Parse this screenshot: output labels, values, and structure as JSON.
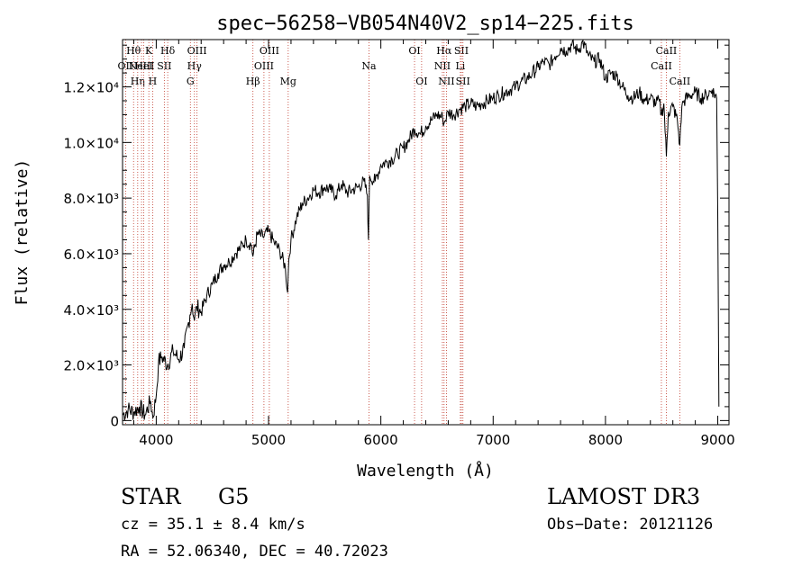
{
  "chart_data": {
    "type": "line",
    "title": "spec−56258−VB054N40V2_sp14−225.fits",
    "xlabel": "Wavelength (Å)",
    "ylabel": "Flux (relative)",
    "xlim": [
      3700,
      9100
    ],
    "ylim": [
      -150,
      13700
    ],
    "x_ticks": [
      4000,
      5000,
      6000,
      7000,
      8000,
      9000
    ],
    "x_tick_labels": [
      "4000",
      "5000",
      "6000",
      "7000",
      "8000",
      "9000"
    ],
    "y_ticks": [
      0,
      2000,
      4000,
      6000,
      8000,
      10000,
      12000
    ],
    "y_tick_labels": [
      "0",
      "2.0×10³",
      "4.0×10³",
      "6.0×10³",
      "8.0×10³",
      "1.0×10⁴",
      "1.2×10⁴"
    ],
    "series": [
      {
        "name": "spectrum",
        "x": [
          3700,
          3750,
          3800,
          3850,
          3900,
          3950,
          3970,
          4000,
          4020,
          4050,
          4100,
          4150,
          4200,
          4250,
          4300,
          4320,
          4340,
          4360,
          4400,
          4450,
          4500,
          4550,
          4600,
          4650,
          4700,
          4750,
          4800,
          4850,
          4860,
          4900,
          4950,
          5000,
          5050,
          5100,
          5150,
          5170,
          5180,
          5200,
          5250,
          5300,
          5350,
          5400,
          5450,
          5500,
          5550,
          5600,
          5650,
          5700,
          5750,
          5800,
          5850,
          5880,
          5890,
          5900,
          5950,
          6000,
          6050,
          6100,
          6150,
          6200,
          6250,
          6300,
          6350,
          6400,
          6450,
          6500,
          6550,
          6563,
          6600,
          6650,
          6700,
          6750,
          6800,
          6850,
          6900,
          6950,
          7000,
          7050,
          7100,
          7150,
          7200,
          7250,
          7300,
          7350,
          7400,
          7450,
          7500,
          7550,
          7600,
          7650,
          7700,
          7750,
          7800,
          7850,
          7900,
          7950,
          8000,
          8050,
          8100,
          8150,
          8200,
          8250,
          8300,
          8350,
          8400,
          8450,
          8480,
          8498,
          8520,
          8542,
          8560,
          8600,
          8640,
          8662,
          8680,
          8700,
          8750,
          8800,
          8850,
          8900,
          8950,
          8990,
          9000,
          9010
        ],
        "y": [
          200,
          400,
          300,
          500,
          200,
          700,
          100,
          900,
          2100,
          2300,
          2000,
          2500,
          2200,
          2600,
          3800,
          4200,
          3600,
          4100,
          3900,
          4500,
          4900,
          5300,
          5600,
          5700,
          6000,
          6200,
          6500,
          6300,
          5900,
          6700,
          6600,
          6800,
          6400,
          6100,
          5500,
          4600,
          5800,
          6500,
          7300,
          7800,
          8000,
          8300,
          8200,
          8400,
          8300,
          8100,
          8500,
          8200,
          8300,
          8400,
          8600,
          8100,
          6500,
          8800,
          8600,
          9200,
          9300,
          9400,
          9600,
          9800,
          10100,
          10500,
          10300,
          10600,
          10800,
          11000,
          10900,
          10700,
          11100,
          11000,
          11200,
          11300,
          11400,
          11300,
          11400,
          11500,
          11600,
          11700,
          11800,
          11900,
          12000,
          12200,
          12300,
          12500,
          12700,
          12900,
          12800,
          13100,
          13400,
          13300,
          13500,
          13300,
          13600,
          13100,
          12900,
          13000,
          12300,
          12500,
          12400,
          12000,
          11700,
          11600,
          11800,
          11500,
          11600,
          11400,
          11500,
          11000,
          11400,
          9500,
          11100,
          11300,
          10800,
          9900,
          11300,
          11500,
          11700,
          11800,
          11600,
          11700,
          11900,
          11600,
          7500,
          500
        ]
      }
    ],
    "line_markers": [
      {
        "wavelength": 3727,
        "label": "OII",
        "row": 1
      },
      {
        "wavelength": 3798,
        "label": "Hθ",
        "row": 0
      },
      {
        "wavelength": 3835,
        "label": "Hη",
        "row": 2
      },
      {
        "wavelength": 3869,
        "label": "NeIII",
        "row": 1
      },
      {
        "wavelength": 3889,
        "label": "HeI",
        "row": 1
      },
      {
        "wavelength": 3934,
        "label": "K",
        "row": 0
      },
      {
        "wavelength": 3968,
        "label": "H",
        "row": 2
      },
      {
        "wavelength": 4072,
        "label": "SII",
        "row": 1
      },
      {
        "wavelength": 4102,
        "label": "Hδ",
        "row": 0
      },
      {
        "wavelength": 4304,
        "label": "G",
        "row": 2
      },
      {
        "wavelength": 4340,
        "label": "Hγ",
        "row": 1
      },
      {
        "wavelength": 4363,
        "label": "OIII",
        "row": 0
      },
      {
        "wavelength": 4861,
        "label": "Hβ",
        "row": 2
      },
      {
        "wavelength": 4959,
        "label": "OIII",
        "row": 1
      },
      {
        "wavelength": 5007,
        "label": "OIII",
        "row": 0
      },
      {
        "wavelength": 5175,
        "label": "Mg",
        "row": 2
      },
      {
        "wavelength": 5894,
        "label": "Na",
        "row": 1
      },
      {
        "wavelength": 6300,
        "label": "OI",
        "row": 0
      },
      {
        "wavelength": 6363,
        "label": "OI",
        "row": 2
      },
      {
        "wavelength": 6548,
        "label": "NII",
        "row": 1
      },
      {
        "wavelength": 6563,
        "label": "Hα",
        "row": 0
      },
      {
        "wavelength": 6584,
        "label": "NII",
        "row": 2
      },
      {
        "wavelength": 6708,
        "label": "Li",
        "row": 1
      },
      {
        "wavelength": 6717,
        "label": "SII",
        "row": 0
      },
      {
        "wavelength": 6731,
        "label": "SII",
        "row": 2
      },
      {
        "wavelength": 8498,
        "label": "CaII",
        "row": 1
      },
      {
        "wavelength": 8542,
        "label": "CaII",
        "row": 0
      },
      {
        "wavelength": 8662,
        "label": "CaII",
        "row": 2
      }
    ]
  },
  "info": {
    "class": "STAR",
    "subclass": "G5",
    "survey": "LAMOST DR3",
    "redshift": "cz = 35.1 ± 8.4 km/s",
    "obs_date": "Obs−Date: 20121126",
    "coords": "RA =  52.06340, DEC =  40.72023"
  }
}
